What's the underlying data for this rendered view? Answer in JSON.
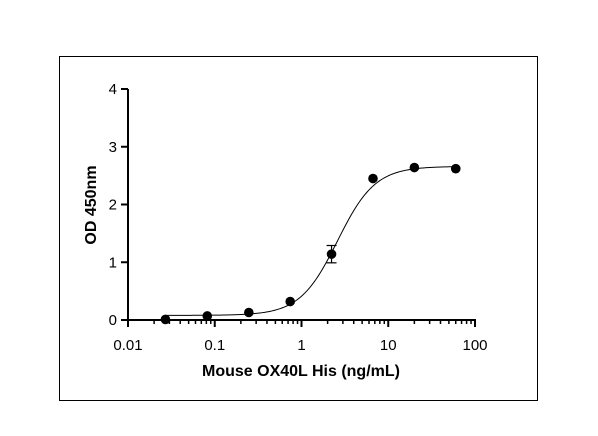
{
  "chart_data": {
    "type": "scatter",
    "title": "",
    "xlabel": "Mouse OX40L His (ng/mL)",
    "ylabel": "OD 450nm",
    "x_scale": "log",
    "xlim": [
      0.01,
      100
    ],
    "ylim": [
      0,
      4
    ],
    "x_ticks": [
      {
        "value": 0.01,
        "label": "0.01"
      },
      {
        "value": 0.1,
        "label": "0.1"
      },
      {
        "value": 1,
        "label": "1"
      },
      {
        "value": 10,
        "label": "10"
      },
      {
        "value": 100,
        "label": "100"
      }
    ],
    "y_ticks": [
      {
        "value": 0,
        "label": "0"
      },
      {
        "value": 1,
        "label": "1"
      },
      {
        "value": 2,
        "label": "2"
      },
      {
        "value": 3,
        "label": "3"
      },
      {
        "value": 4,
        "label": "4"
      }
    ],
    "grid": false,
    "legend": "none",
    "points": [
      {
        "x": 0.027,
        "y": 0.01,
        "err": 0.01
      },
      {
        "x": 0.082,
        "y": 0.07,
        "err": 0.01
      },
      {
        "x": 0.247,
        "y": 0.13,
        "err": 0.01
      },
      {
        "x": 0.741,
        "y": 0.32,
        "err": 0.02
      },
      {
        "x": 2.22,
        "y": 1.14,
        "err": 0.15
      },
      {
        "x": 6.67,
        "y": 2.45,
        "err": 0.03
      },
      {
        "x": 20,
        "y": 2.64,
        "err": 0.02
      },
      {
        "x": 60,
        "y": 2.62,
        "err": 0.02
      }
    ],
    "fit": {
      "model": "4PL",
      "bottom": 0.08,
      "top": 2.66,
      "ec50": 2.6,
      "hill": 2.0
    },
    "color": "#000000"
  }
}
